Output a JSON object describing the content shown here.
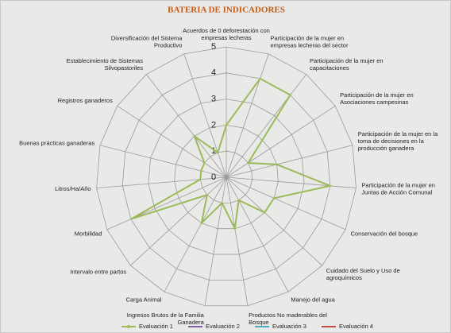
{
  "chart_data": {
    "type": "radar",
    "title": "BATERIA DE INDICADORES",
    "categories": [
      "Acuerdos de 0 deforestación con empresas lecheras",
      "Participación de la mujer en empresas lecheras del sector",
      "Participación de la mujer en capacitaciones",
      "Participación de la mujer en Asociaciones campesinas",
      "Participación de la mujer en la toma de decisiones en la producción ganadera",
      "Participación de la mujer en Juntas de Acción Comunal",
      "Conservación del bosque",
      "Cuidado del Suelo y Uso de agroquímicos",
      "Manejo del agua",
      "Productos No maderables del Bosque",
      "Ingresos Brutos de la Familia Ganadera",
      "Carga Animal",
      "Intervalo entre partos",
      "Morbilidad",
      "Litros/Ha/Año",
      "Buenas prácticas ganaderas",
      "Registros ganaderos",
      "Establecimiento de Sistemas Silvopastoriles",
      "Diversificación del Sistema Productivo"
    ],
    "series": [
      {
        "name": "Evaluación 1",
        "color": "#9bbb59",
        "values": [
          2,
          4,
          4,
          1,
          2,
          4,
          2,
          2,
          1,
          2,
          1,
          2,
          1,
          4,
          1,
          1,
          1,
          2,
          1
        ]
      },
      {
        "name": "Evaluación 2",
        "color": "#8064a2",
        "values": [
          null,
          null,
          null,
          null,
          null,
          null,
          null,
          null,
          null,
          null,
          null,
          null,
          null,
          null,
          null,
          null,
          null,
          null,
          null
        ]
      },
      {
        "name": "Evaluación 3",
        "color": "#4bacc6",
        "values": [
          null,
          null,
          null,
          null,
          null,
          null,
          null,
          null,
          null,
          null,
          null,
          null,
          null,
          null,
          null,
          null,
          null,
          null,
          null
        ]
      },
      {
        "name": "Evaluación 4",
        "color": "#c0504d",
        "values": [
          null,
          null,
          null,
          null,
          null,
          null,
          null,
          null,
          null,
          null,
          null,
          null,
          null,
          null,
          null,
          null,
          null,
          null,
          null
        ]
      }
    ],
    "ylim": [
      0,
      5
    ],
    "yticks": [
      0,
      1,
      2,
      3,
      4,
      5
    ],
    "grid": true,
    "legend": "bottom"
  }
}
